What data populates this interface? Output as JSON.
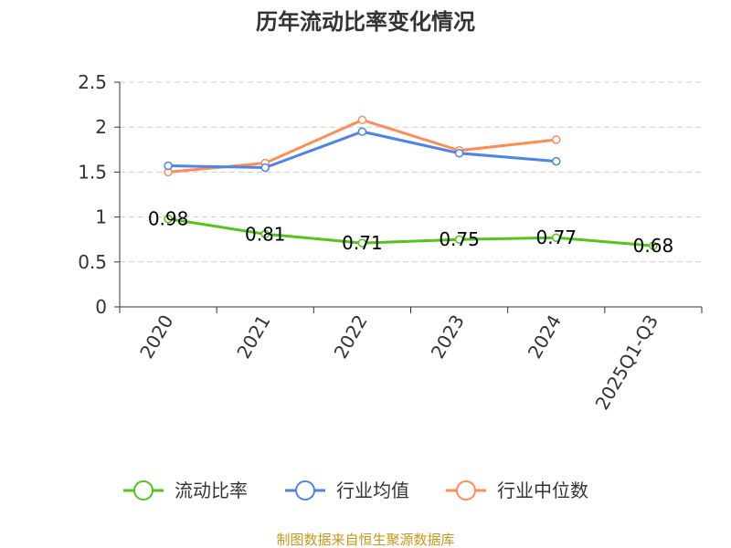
{
  "chart_data": {
    "type": "line",
    "title": "历年流动比率变化情况",
    "categories": [
      "2020",
      "2021",
      "2022",
      "2023",
      "2024",
      "2025Q1-Q3"
    ],
    "ylim": [
      0,
      2.5
    ],
    "yticks": [
      "0",
      "0.5",
      "1",
      "1.5",
      "2",
      "2.5"
    ],
    "grid": true,
    "legend_position": "bottom",
    "series": [
      {
        "name": "流动比率",
        "color": "#52c41a",
        "values": [
          0.98,
          0.81,
          0.71,
          0.75,
          0.77,
          0.68
        ],
        "labels": [
          "0.98",
          "0.81",
          "0.71",
          "0.75",
          "0.77",
          "0.68"
        ]
      },
      {
        "name": "行业均值",
        "color": "#4e83e8",
        "values": [
          1.57,
          1.55,
          1.95,
          1.71,
          1.62,
          null
        ]
      },
      {
        "name": "行业中位数",
        "color": "#ff8c55",
        "values": [
          1.5,
          1.6,
          2.08,
          1.74,
          1.86,
          null
        ]
      }
    ],
    "source": "制图数据来自恒生聚源数据库"
  }
}
